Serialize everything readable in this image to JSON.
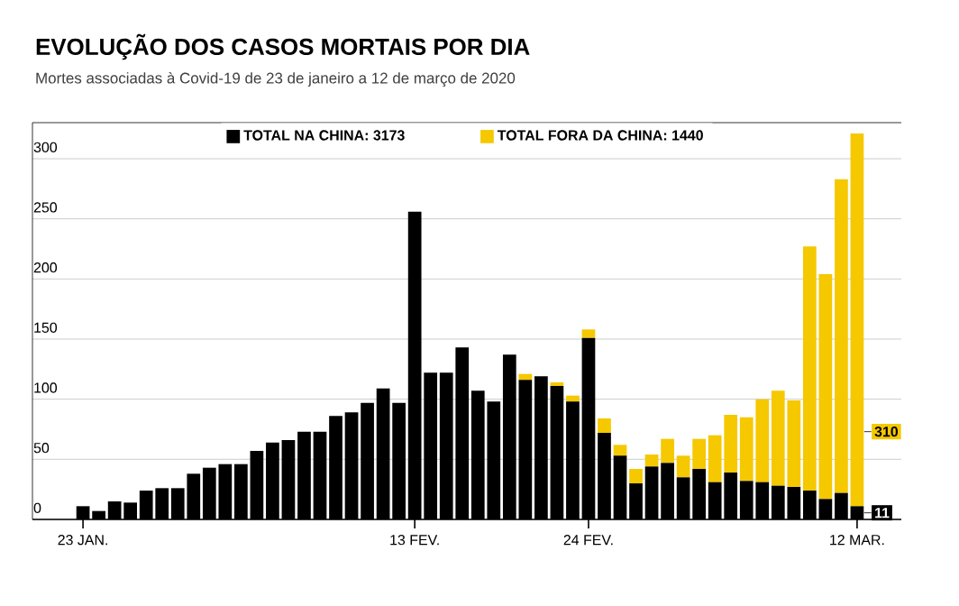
{
  "chart_data": {
    "type": "bar",
    "title": "EVOLUÇÃO DOS CASOS MORTAIS POR DIA",
    "subtitle": "Mortes associadas à Covid-19 de 23 de janeiro a 12 de março de 2020",
    "categories": [
      "23 JAN.",
      null,
      null,
      null,
      null,
      null,
      null,
      null,
      null,
      null,
      null,
      null,
      null,
      null,
      null,
      null,
      null,
      null,
      null,
      null,
      null,
      "13 FEV.",
      null,
      null,
      null,
      null,
      null,
      null,
      null,
      null,
      null,
      null,
      "24 FEV.",
      null,
      null,
      null,
      null,
      null,
      null,
      null,
      null,
      null,
      null,
      null,
      null,
      null,
      null,
      null,
      null,
      "12 MAR."
    ],
    "stacked": true,
    "series": [
      {
        "name": "TOTAL NA CHINA: 3173",
        "color": "#000000",
        "values": [
          11,
          7,
          15,
          14,
          24,
          26,
          26,
          38,
          43,
          46,
          46,
          57,
          64,
          66,
          73,
          73,
          86,
          89,
          97,
          109,
          97,
          256,
          122,
          122,
          143,
          107,
          98,
          137,
          116,
          119,
          111,
          98,
          151,
          72,
          53,
          30,
          44,
          47,
          35,
          42,
          31,
          39,
          32,
          31,
          28,
          27,
          24,
          17,
          22,
          11
        ],
        "value_labels": [
          null,
          null,
          null,
          null,
          null,
          null,
          null,
          null,
          null,
          null,
          null,
          null,
          null,
          null,
          null,
          null,
          null,
          null,
          null,
          null,
          null,
          null,
          null,
          null,
          null,
          null,
          null,
          null,
          null,
          null,
          null,
          null,
          null,
          null,
          null,
          null,
          null,
          null,
          null,
          null,
          null,
          null,
          null,
          null,
          null,
          null,
          null,
          null,
          null,
          "11"
        ]
      },
      {
        "name": "TOTAL FORA DA CHINA: 1440",
        "color": "#f5c800",
        "values": [
          0,
          0,
          0,
          0,
          0,
          0,
          0,
          0,
          0,
          0,
          0,
          0,
          0,
          0,
          0,
          0,
          0,
          0,
          0,
          0,
          0,
          0,
          0,
          0,
          0,
          0,
          0,
          0,
          5,
          0,
          3,
          5,
          7,
          12,
          9,
          12,
          10,
          20,
          18,
          25,
          39,
          48,
          53,
          69,
          79,
          72,
          203,
          187,
          261,
          310
        ],
        "value_labels": [
          null,
          null,
          null,
          null,
          null,
          null,
          null,
          null,
          null,
          null,
          null,
          null,
          null,
          null,
          null,
          null,
          null,
          null,
          null,
          null,
          null,
          null,
          null,
          null,
          null,
          null,
          null,
          null,
          null,
          null,
          null,
          null,
          null,
          null,
          null,
          null,
          null,
          null,
          null,
          null,
          null,
          null,
          null,
          null,
          null,
          null,
          null,
          null,
          null,
          "310"
        ]
      }
    ],
    "ylim": [
      0,
      330
    ],
    "yticks": [
      0,
      50,
      100,
      150,
      200,
      250,
      300
    ],
    "grid": "y",
    "legend": "top"
  }
}
